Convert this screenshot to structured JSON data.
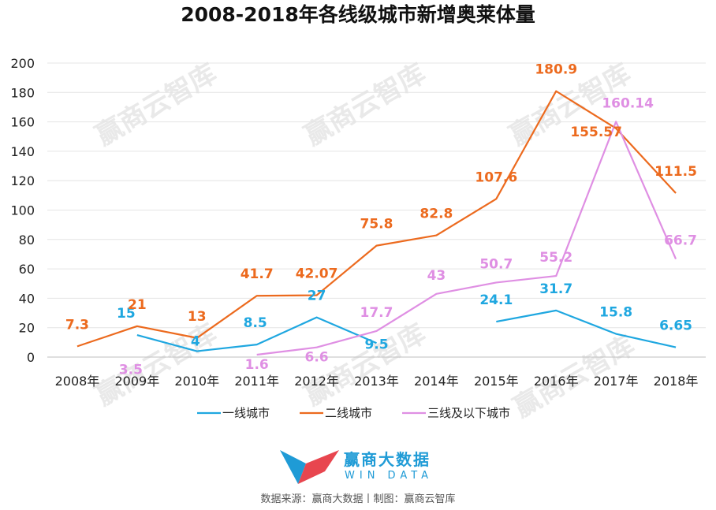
{
  "chart_data": {
    "type": "line",
    "title": "2008-2018年各线级城市新增奥莱体量",
    "categories": [
      "2008年",
      "2009年",
      "2010年",
      "2011年",
      "2012年",
      "2013年",
      "2014年",
      "2015年",
      "2016年",
      "2017年",
      "2018年"
    ],
    "ylim": [
      0,
      200
    ],
    "yticks": [
      0,
      20,
      40,
      60,
      80,
      100,
      120,
      140,
      160,
      180,
      200
    ],
    "xlabel": "",
    "ylabel": "",
    "grid": true,
    "legend_position": "bottom",
    "series": [
      {
        "name": "一线城市",
        "color": "#1fa7e0",
        "values": [
          null,
          15,
          4,
          8.5,
          27,
          9.5,
          null,
          24.1,
          31.7,
          15.8,
          6.65
        ],
        "labels": [
          null,
          "15",
          "4",
          "8.5",
          "27",
          "9.5",
          null,
          "24.1",
          "31.7",
          "15.8",
          "6.65"
        ]
      },
      {
        "name": "二线城市",
        "color": "#ec6a1e",
        "values": [
          7.3,
          21,
          13,
          41.7,
          42.07,
          75.8,
          82.8,
          107.6,
          180.9,
          155.57,
          111.5
        ],
        "labels": [
          "7.3",
          "21",
          "13",
          "41.7",
          "42.07",
          "75.8",
          "82.8",
          "107.6",
          "180.9",
          "155.57",
          "111.5"
        ]
      },
      {
        "name": "三线及以下城市",
        "color": "#df8fe3",
        "values": [
          null,
          3.5,
          null,
          1.6,
          6.6,
          17.7,
          43,
          50.7,
          55.2,
          160.14,
          66.7
        ],
        "labels": [
          null,
          "3.5",
          null,
          "1.6",
          "6.6",
          "17.7",
          "43",
          "50.7",
          "55.2",
          "160.14",
          "66.7"
        ]
      }
    ]
  },
  "watermark": "赢商云智库",
  "brand": {
    "name": "赢商大数据",
    "sub": "WIN DATA"
  },
  "source": "数据来源：赢商大数据丨制图：赢商云智库"
}
